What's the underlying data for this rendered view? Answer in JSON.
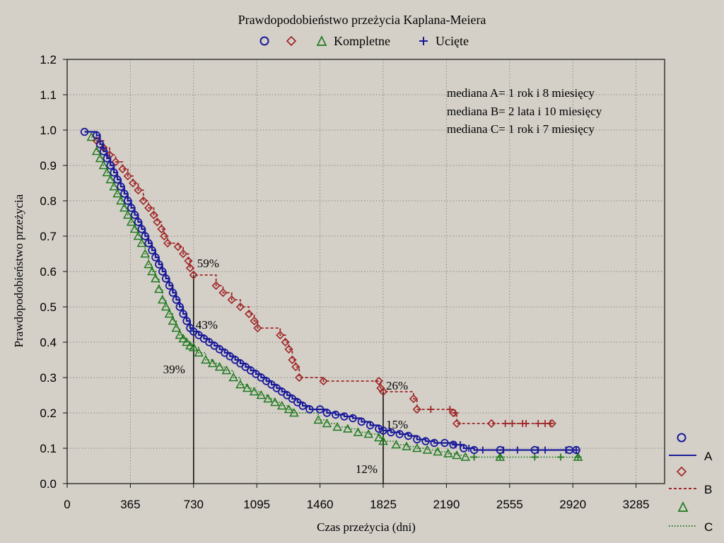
{
  "chart_data": {
    "type": "line",
    "title": "Prawdopodobieństwo przeżycia Kaplana-Meiera",
    "xlabel": "Czas przeżycia (dni)",
    "ylabel": "Prawdopodobieństwo przeżycia",
    "xlim": [
      0,
      3450
    ],
    "ylim": [
      0.0,
      1.2
    ],
    "x_ticks": [
      "0",
      "365",
      "730",
      "1095",
      "1460",
      "1825",
      "2190",
      "2555",
      "2920",
      "3285"
    ],
    "x_tick_values": [
      0,
      365,
      730,
      1095,
      1460,
      1825,
      2190,
      2555,
      2920,
      3285
    ],
    "y_ticks": [
      "0.0",
      "0.1",
      "0.2",
      "0.3",
      "0.4",
      "0.5",
      "0.6",
      "0.7",
      "0.8",
      "0.9",
      "1.0",
      "1.1",
      "1.2"
    ],
    "y_tick_values": [
      0.0,
      0.1,
      0.2,
      0.3,
      0.4,
      0.5,
      0.6,
      0.7,
      0.8,
      0.9,
      1.0,
      1.1,
      1.2
    ],
    "grid": true,
    "top_legend": {
      "complete_label": "Kompletne",
      "censored_label": "Ucięte"
    },
    "side_legend": [
      "A",
      "B",
      "C"
    ],
    "medians": [
      "mediana A= 1 rok i 8 miesięcy",
      "mediana B= 2 lata i 10 miesięcy",
      "mediana C= 1 rok i 7 miesięcy"
    ],
    "annotations": [
      {
        "text": "59%",
        "x": 730,
        "y": 0.59
      },
      {
        "text": "43%",
        "x": 730,
        "y": 0.43
      },
      {
        "text": "39%",
        "x": 730,
        "y": 0.39
      },
      {
        "text": "26%",
        "x": 1825,
        "y": 0.26
      },
      {
        "text": "15%",
        "x": 1825,
        "y": 0.15
      },
      {
        "text": "12%",
        "x": 1825,
        "y": 0.12
      }
    ],
    "reference_lines": [
      {
        "x": 730,
        "y_top": 0.59
      },
      {
        "x": 1825,
        "y_top": 0.26
      }
    ],
    "series": [
      {
        "name": "A",
        "color": "#1a1a9a",
        "marker": "circle",
        "line": "solid",
        "points": [
          [
            100,
            0.995
          ],
          [
            170,
            0.985
          ],
          [
            190,
            0.96
          ],
          [
            210,
            0.94
          ],
          [
            230,
            0.92
          ],
          [
            250,
            0.9
          ],
          [
            270,
            0.88
          ],
          [
            290,
            0.86
          ],
          [
            310,
            0.84
          ],
          [
            330,
            0.82
          ],
          [
            350,
            0.8
          ],
          [
            370,
            0.78
          ],
          [
            390,
            0.76
          ],
          [
            410,
            0.74
          ],
          [
            430,
            0.72
          ],
          [
            450,
            0.7
          ],
          [
            470,
            0.68
          ],
          [
            490,
            0.66
          ],
          [
            510,
            0.64
          ],
          [
            530,
            0.62
          ],
          [
            550,
            0.6
          ],
          [
            570,
            0.58
          ],
          [
            590,
            0.56
          ],
          [
            610,
            0.54
          ],
          [
            630,
            0.52
          ],
          [
            650,
            0.5
          ],
          [
            670,
            0.48
          ],
          [
            690,
            0.46
          ],
          [
            710,
            0.44
          ],
          [
            730,
            0.43
          ],
          [
            760,
            0.42
          ],
          [
            790,
            0.41
          ],
          [
            820,
            0.4
          ],
          [
            850,
            0.39
          ],
          [
            880,
            0.38
          ],
          [
            910,
            0.37
          ],
          [
            940,
            0.36
          ],
          [
            970,
            0.35
          ],
          [
            1000,
            0.34
          ],
          [
            1030,
            0.33
          ],
          [
            1060,
            0.32
          ],
          [
            1090,
            0.31
          ],
          [
            1120,
            0.3
          ],
          [
            1150,
            0.29
          ],
          [
            1180,
            0.28
          ],
          [
            1210,
            0.27
          ],
          [
            1240,
            0.26
          ],
          [
            1270,
            0.25
          ],
          [
            1300,
            0.24
          ],
          [
            1330,
            0.23
          ],
          [
            1360,
            0.22
          ],
          [
            1400,
            0.21
          ],
          [
            1460,
            0.21
          ],
          [
            1500,
            0.2
          ],
          [
            1550,
            0.195
          ],
          [
            1600,
            0.19
          ],
          [
            1650,
            0.185
          ],
          [
            1700,
            0.175
          ],
          [
            1750,
            0.165
          ],
          [
            1800,
            0.155
          ],
          [
            1825,
            0.15
          ],
          [
            1870,
            0.145
          ],
          [
            1920,
            0.14
          ],
          [
            1970,
            0.135
          ],
          [
            2020,
            0.125
          ],
          [
            2070,
            0.12
          ],
          [
            2120,
            0.115
          ],
          [
            2180,
            0.115
          ],
          [
            2230,
            0.11
          ],
          [
            2290,
            0.1
          ],
          [
            2350,
            0.095
          ],
          [
            2500,
            0.095
          ],
          [
            2700,
            0.095
          ],
          [
            2900,
            0.095
          ],
          [
            2940,
            0.095
          ]
        ],
        "censored": [
          2240,
          2270,
          2320,
          2400,
          2520,
          2600,
          2720,
          2760,
          2880,
          2940
        ]
      },
      {
        "name": "B",
        "color": "#a02828",
        "marker": "diamond",
        "line": "dashed",
        "points": [
          [
            170,
            0.97
          ],
          [
            210,
            0.95
          ],
          [
            245,
            0.93
          ],
          [
            280,
            0.91
          ],
          [
            320,
            0.89
          ],
          [
            350,
            0.87
          ],
          [
            380,
            0.85
          ],
          [
            410,
            0.83
          ],
          [
            440,
            0.8
          ],
          [
            470,
            0.78
          ],
          [
            500,
            0.76
          ],
          [
            520,
            0.74
          ],
          [
            545,
            0.72
          ],
          [
            560,
            0.7
          ],
          [
            580,
            0.68
          ],
          [
            640,
            0.67
          ],
          [
            670,
            0.65
          ],
          [
            700,
            0.63
          ],
          [
            710,
            0.61
          ],
          [
            730,
            0.59
          ],
          [
            860,
            0.56
          ],
          [
            900,
            0.54
          ],
          [
            950,
            0.52
          ],
          [
            1000,
            0.5
          ],
          [
            1050,
            0.48
          ],
          [
            1080,
            0.46
          ],
          [
            1100,
            0.44
          ],
          [
            1230,
            0.42
          ],
          [
            1260,
            0.4
          ],
          [
            1280,
            0.38
          ],
          [
            1300,
            0.35
          ],
          [
            1320,
            0.33
          ],
          [
            1340,
            0.3
          ],
          [
            1480,
            0.29
          ],
          [
            1800,
            0.29
          ],
          [
            1810,
            0.27
          ],
          [
            1825,
            0.26
          ],
          [
            2000,
            0.24
          ],
          [
            2020,
            0.21
          ],
          [
            2230,
            0.2
          ],
          [
            2250,
            0.17
          ],
          [
            2450,
            0.17
          ],
          [
            2800,
            0.17
          ]
        ],
        "censored": [
          2100,
          2210,
          2240,
          2530,
          2570,
          2630,
          2650,
          2720,
          2760,
          2790
        ]
      },
      {
        "name": "C",
        "color": "#1f7a1f",
        "marker": "triangle",
        "line": "dotted",
        "points": [
          [
            140,
            0.98
          ],
          [
            170,
            0.94
          ],
          [
            190,
            0.92
          ],
          [
            210,
            0.9
          ],
          [
            230,
            0.88
          ],
          [
            250,
            0.86
          ],
          [
            270,
            0.84
          ],
          [
            290,
            0.82
          ],
          [
            310,
            0.8
          ],
          [
            330,
            0.78
          ],
          [
            350,
            0.76
          ],
          [
            370,
            0.74
          ],
          [
            390,
            0.72
          ],
          [
            410,
            0.7
          ],
          [
            430,
            0.68
          ],
          [
            450,
            0.65
          ],
          [
            470,
            0.62
          ],
          [
            490,
            0.6
          ],
          [
            510,
            0.58
          ],
          [
            530,
            0.55
          ],
          [
            550,
            0.52
          ],
          [
            570,
            0.5
          ],
          [
            590,
            0.48
          ],
          [
            610,
            0.46
          ],
          [
            630,
            0.44
          ],
          [
            650,
            0.42
          ],
          [
            670,
            0.41
          ],
          [
            690,
            0.4
          ],
          [
            710,
            0.39
          ],
          [
            730,
            0.385
          ],
          [
            760,
            0.37
          ],
          [
            800,
            0.35
          ],
          [
            840,
            0.34
          ],
          [
            880,
            0.33
          ],
          [
            920,
            0.32
          ],
          [
            960,
            0.3
          ],
          [
            1000,
            0.28
          ],
          [
            1040,
            0.27
          ],
          [
            1080,
            0.26
          ],
          [
            1120,
            0.25
          ],
          [
            1160,
            0.24
          ],
          [
            1200,
            0.23
          ],
          [
            1240,
            0.22
          ],
          [
            1280,
            0.21
          ],
          [
            1310,
            0.2
          ],
          [
            1450,
            0.18
          ],
          [
            1500,
            0.17
          ],
          [
            1560,
            0.16
          ],
          [
            1620,
            0.155
          ],
          [
            1680,
            0.145
          ],
          [
            1740,
            0.14
          ],
          [
            1800,
            0.13
          ],
          [
            1825,
            0.12
          ],
          [
            1900,
            0.11
          ],
          [
            1960,
            0.105
          ],
          [
            2020,
            0.1
          ],
          [
            2080,
            0.095
          ],
          [
            2140,
            0.09
          ],
          [
            2200,
            0.085
          ],
          [
            2250,
            0.08
          ],
          [
            2300,
            0.075
          ],
          [
            2500,
            0.075
          ],
          [
            2950,
            0.075
          ]
        ],
        "censored": [
          2350,
          2500,
          2700,
          2850,
          2950
        ]
      }
    ]
  }
}
